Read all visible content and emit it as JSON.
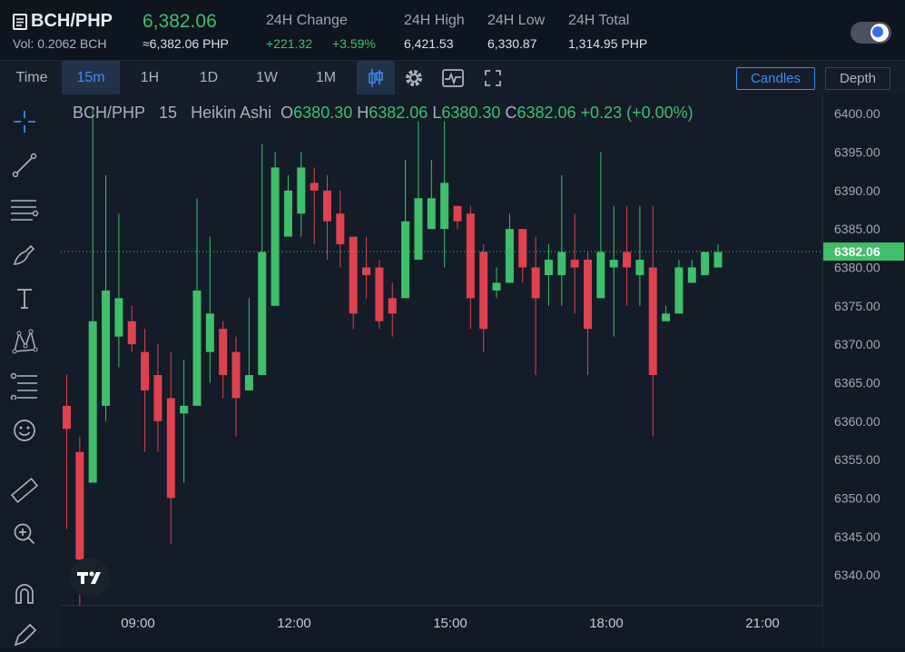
{
  "header": {
    "pair": "BCH/PHP",
    "volume": "Vol: 0.2062 BCH",
    "last_price": "6,382.06",
    "last_price_fiat": "≈6,382.06 PHP",
    "stats": [
      {
        "label": "24H Change",
        "value": "+221.32",
        "extra": "+3.59%"
      },
      {
        "label": "24H High",
        "value": "6,421.53"
      },
      {
        "label": "24H Low",
        "value": "6,330.87"
      },
      {
        "label": "24H Total",
        "value": "1,314.95 PHP"
      }
    ],
    "theme_toggle": "dark-mode-toggle"
  },
  "toolbar": {
    "intervals": [
      "Time",
      "15m",
      "1H",
      "1D",
      "1W",
      "1M"
    ],
    "active_interval": "15m",
    "view_buttons": {
      "candles": "Candles",
      "depth": "Depth"
    },
    "active_view": "Candles",
    "icons": [
      "candle-type-icon",
      "settings-icon",
      "indicators-icon",
      "fullscreen-icon"
    ]
  },
  "left_tools": [
    "crosshair-icon",
    "trendline-icon",
    "horizontal-lines-icon",
    "brush-icon",
    "text-icon",
    "pattern-icon",
    "fib-icon",
    "emoji-icon",
    "ruler-icon",
    "zoom-icon",
    "magnet-icon",
    "pencil-icon"
  ],
  "legend": {
    "symbol": "BCH/PHP",
    "interval": "15",
    "style": "Heikin Ashi",
    "o_label": "O",
    "o": "6380.30",
    "h_label": "H",
    "h": "6382.06",
    "l_label": "L",
    "l": "6380.30",
    "c_label": "C",
    "c": "6382.06",
    "change": "+0.23 (+0.00%)"
  },
  "colors": {
    "up": "#3fbf6b",
    "down": "#e0414f",
    "accent": "#3c8cf0"
  },
  "chart_data": {
    "type": "candlestick",
    "style": "Heikin Ashi",
    "y_ticks": [
      "6400.00",
      "6395.00",
      "6390.00",
      "6385.00",
      "6380.00",
      "6375.00",
      "6370.00",
      "6365.00",
      "6360.00",
      "6355.00",
      "6350.00",
      "6345.00",
      "6340.00"
    ],
    "x_ticks": [
      "09:00",
      "12:00",
      "15:00",
      "18:00",
      "21:00"
    ],
    "ylim": [
      6336,
      6402.5
    ],
    "current_price_label": "6382.06",
    "current_price": 6382.06,
    "candles": [
      [
        6362,
        6359,
        6366,
        6346
      ],
      [
        6356,
        6342,
        6358,
        6336
      ],
      [
        6352,
        6373,
        6401,
        6352
      ],
      [
        6362,
        6377,
        6392,
        6360
      ],
      [
        6371,
        6376,
        6387,
        6367
      ],
      [
        6373,
        6370,
        6375,
        6369
      ],
      [
        6369,
        6364,
        6372,
        6356
      ],
      [
        6366,
        6360,
        6370,
        6356
      ],
      [
        6363,
        6350,
        6369,
        6344
      ],
      [
        6361,
        6362,
        6368,
        6352
      ],
      [
        6362,
        6377,
        6389,
        6362
      ],
      [
        6369,
        6374,
        6384,
        6365
      ],
      [
        6372,
        6366,
        6373,
        6363
      ],
      [
        6369,
        6363,
        6371,
        6358
      ],
      [
        6364,
        6366,
        6376,
        6364
      ],
      [
        6366,
        6382,
        6396,
        6366
      ],
      [
        6375,
        6393,
        6395,
        6375
      ],
      [
        6384,
        6390,
        6392,
        6385
      ],
      [
        6387,
        6393,
        6395,
        6384
      ],
      [
        6391,
        6390,
        6393,
        6383
      ],
      [
        6390,
        6386,
        6392,
        6381
      ],
      [
        6387,
        6383,
        6390,
        6380
      ],
      [
        6384,
        6374,
        6384,
        6372
      ],
      [
        6380,
        6379,
        6384,
        6376
      ],
      [
        6380,
        6373,
        6381,
        6372
      ],
      [
        6376,
        6374,
        6378,
        6371
      ],
      [
        6376,
        6386,
        6394,
        6376
      ],
      [
        6381,
        6389,
        6399,
        6381
      ],
      [
        6385,
        6389,
        6394,
        6385
      ],
      [
        6385,
        6391,
        6399,
        6380
      ],
      [
        6388,
        6386,
        6387,
        6385
      ],
      [
        6387,
        6376,
        6388,
        6372
      ],
      [
        6382,
        6372,
        6383,
        6369
      ],
      [
        6377,
        6378,
        6380,
        6376
      ],
      [
        6378,
        6385,
        6387,
        6378
      ],
      [
        6385,
        6380,
        6385,
        6378
      ],
      [
        6380,
        6376,
        6384,
        6366
      ],
      [
        6379,
        6381,
        6383,
        6375
      ],
      [
        6379,
        6382,
        6392,
        6375
      ],
      [
        6381,
        6380,
        6387,
        6374
      ],
      [
        6381,
        6372,
        6382,
        6366
      ],
      [
        6376,
        6382,
        6395,
        6376
      ],
      [
        6380,
        6381,
        6388,
        6371
      ],
      [
        6382,
        6380,
        6388,
        6375
      ],
      [
        6379,
        6381,
        6388,
        6375
      ],
      [
        6380,
        6366,
        6388,
        6358
      ],
      [
        6373,
        6374,
        6375,
        6373
      ],
      [
        6374,
        6380,
        6381,
        6374
      ],
      [
        6378,
        6380,
        6381,
        6378
      ],
      [
        6379,
        6382,
        6382,
        6379
      ],
      [
        6380,
        6382,
        6383,
        6380
      ]
    ]
  }
}
